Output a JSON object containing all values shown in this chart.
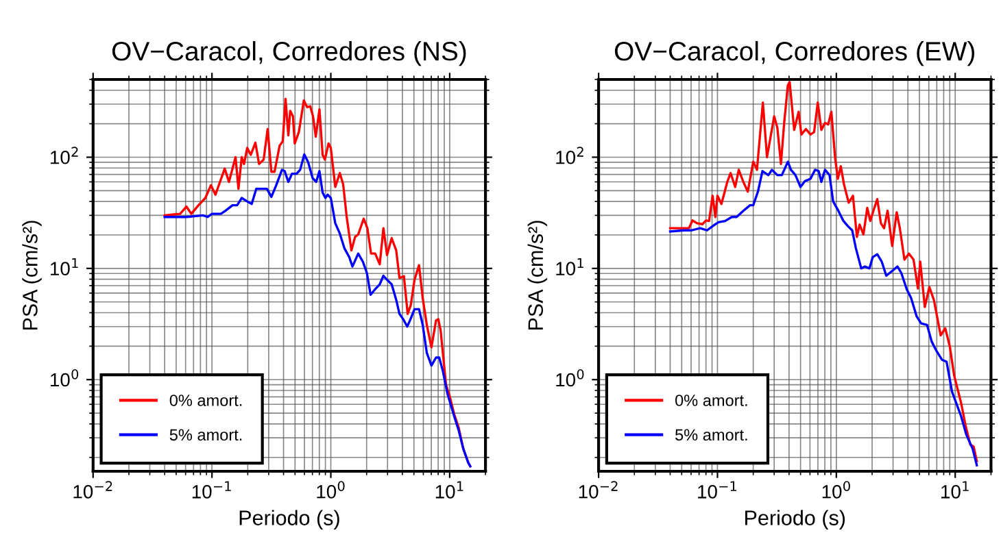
{
  "chart_data": [
    {
      "type": "line",
      "title": "OV−Caracol, Corredores (NS)",
      "xlabel": "Periodo (s)",
      "ylabel": "PSA (cm/s²)",
      "log": "xy",
      "grid": true,
      "legend": "bottom left",
      "xlim": [
        0.01,
        20
      ],
      "ylim": [
        0.15,
        500
      ],
      "xticks": [
        {
          "value": 0.01,
          "label": "10$^{−2}$"
        },
        {
          "value": 0.1,
          "label": "10$^{−1}$"
        },
        {
          "value": 1,
          "label": "10$^{0}$"
        },
        {
          "value": 10,
          "label": "10$^{1}$"
        }
      ],
      "yticks": [
        {
          "value": 1,
          "label": "10$^{0}$"
        },
        {
          "value": 10,
          "label": "10$^{1}$"
        },
        {
          "value": 100,
          "label": "10$^{2}$"
        }
      ],
      "series": [
        {
          "name": "0% amort.",
          "color": "#ff0000",
          "x": [
            0.04,
            0.054,
            0.061,
            0.067,
            0.077,
            0.088,
            0.098,
            0.107,
            0.128,
            0.139,
            0.158,
            0.167,
            0.178,
            0.186,
            0.198,
            0.212,
            0.232,
            0.249,
            0.272,
            0.294,
            0.316,
            0.336,
            0.371,
            0.394,
            0.416,
            0.439,
            0.455,
            0.48,
            0.497,
            0.538,
            0.593,
            0.631,
            0.671,
            0.708,
            0.747,
            0.802,
            0.853,
            0.891,
            0.957,
            1.0,
            1.09,
            1.19,
            1.27,
            1.36,
            1.49,
            1.6,
            1.7,
            1.89,
            2.03,
            2.18,
            2.36,
            2.58,
            2.77,
            2.97,
            3.25,
            3.55,
            3.78,
            4.12,
            4.43,
            4.71,
            5.06,
            5.52,
            5.93,
            6.42,
            7.02,
            7.67,
            8.01,
            8.38,
            9.31,
            10,
            10.9,
            11.9,
            13.0,
            14.3,
            14.9
          ],
          "values": [
            30,
            31,
            36,
            31,
            37,
            43,
            56,
            46,
            79,
            60,
            100,
            52,
            100,
            87,
            121,
            105,
            135,
            87,
            95,
            179,
            74,
            74,
            127,
            139,
            334,
            157,
            261,
            233,
            133,
            168,
            324,
            282,
            287,
            233,
            153,
            269,
            105,
            95,
            133,
            121,
            54,
            72,
            57,
            29,
            14.5,
            19.2,
            20.2,
            28,
            23,
            13.6,
            13.6,
            10.9,
            23,
            13.2,
            18.7,
            14.5,
            8.2,
            8.5,
            3.9,
            4.7,
            7.9,
            10.7,
            5.4,
            3.1,
            1.95,
            3.4,
            3.5,
            2.8,
            0.9,
            0.71,
            0.49,
            0.37,
            0.24,
            0.18,
            0.166
          ]
        },
        {
          "name": "5% amort.",
          "color": "#0000ff",
          "x": [
            0.04,
            0.061,
            0.084,
            0.092,
            0.1,
            0.119,
            0.13,
            0.149,
            0.163,
            0.178,
            0.198,
            0.216,
            0.236,
            0.265,
            0.29,
            0.316,
            0.345,
            0.388,
            0.409,
            0.439,
            0.471,
            0.515,
            0.552,
            0.598,
            0.643,
            0.702,
            0.753,
            0.802,
            0.853,
            0.9,
            0.94,
            1.0,
            1.09,
            1.19,
            1.3,
            1.43,
            1.52,
            1.7,
            1.86,
            2.01,
            2.16,
            2.36,
            2.58,
            2.77,
            2.97,
            3.25,
            3.55,
            3.78,
            4.06,
            4.39,
            4.63,
            5.06,
            5.52,
            5.93,
            6.42,
            7.02,
            7.67,
            8.16,
            8.75,
            9.57,
            10.9,
            11.9,
            13.0,
            14.3,
            14.9
          ],
          "values": [
            29,
            29,
            30,
            29,
            31,
            31,
            33,
            37,
            37,
            43,
            40,
            38,
            52,
            52,
            52,
            44,
            55,
            77,
            75,
            60,
            71,
            71,
            77,
            106,
            91,
            65,
            60,
            75,
            48,
            43,
            46,
            43,
            25.5,
            20.6,
            15.2,
            12.6,
            10.4,
            13.6,
            11.5,
            9.1,
            5.8,
            6.5,
            7.2,
            8.6,
            7.9,
            7.2,
            5.2,
            3.9,
            3.5,
            3.0,
            3.4,
            4.3,
            4.3,
            3.1,
            1.74,
            1.34,
            1.58,
            1.58,
            1.2,
            0.75,
            0.47,
            0.35,
            0.24,
            0.18,
            0.166
          ]
        }
      ]
    },
    {
      "type": "line",
      "title": "OV−Caracol, Corredores (EW)",
      "xlabel": "Periodo (s)",
      "ylabel": "PSA (cm/s²)",
      "log": "xy",
      "grid": true,
      "legend": "bottom left",
      "xlim": [
        0.01,
        20
      ],
      "ylim": [
        0.15,
        500
      ],
      "xticks": [
        {
          "value": 0.01,
          "label": "10$^{−2}$"
        },
        {
          "value": 0.1,
          "label": "10$^{−1}$"
        },
        {
          "value": 1,
          "label": "10$^{0}$"
        },
        {
          "value": 10,
          "label": "10$^{1}$"
        }
      ],
      "yticks": [
        {
          "value": 1,
          "label": "10$^{0}$"
        },
        {
          "value": 10,
          "label": "10$^{1}$"
        },
        {
          "value": 100,
          "label": "10$^{2}$"
        }
      ],
      "series": [
        {
          "name": "0% amort.",
          "color": "#ff0000",
          "x": [
            0.04,
            0.0504,
            0.0575,
            0.0617,
            0.0673,
            0.0748,
            0.08,
            0.085,
            0.091,
            0.096,
            0.1,
            0.108,
            0.121,
            0.129,
            0.141,
            0.151,
            0.165,
            0.18,
            0.2,
            0.215,
            0.241,
            0.261,
            0.28,
            0.3,
            0.319,
            0.342,
            0.364,
            0.391,
            0.405,
            0.442,
            0.482,
            0.508,
            0.555,
            0.606,
            0.65,
            0.698,
            0.748,
            0.803,
            0.854,
            0.908,
            0.975,
            1.03,
            1.09,
            1.16,
            1.27,
            1.38,
            1.49,
            1.57,
            1.69,
            1.82,
            1.93,
            2.07,
            2.21,
            2.37,
            2.52,
            2.7,
            2.95,
            3.22,
            3.42,
            3.74,
            4.08,
            4.46,
            4.86,
            5.08,
            5.55,
            6.06,
            6.62,
            7.55,
            8.24,
            9.0,
            9.8,
            11.2,
            12.2,
            13.4,
            14.3,
            15.2
          ],
          "values": [
            23,
            23,
            23,
            27,
            25.5,
            25,
            27,
            26.7,
            45,
            29,
            45,
            38,
            60,
            72,
            54,
            77,
            60,
            49,
            91,
            77,
            310,
            100,
            153,
            233,
            184,
            87,
            203,
            443,
            473,
            176,
            256,
            160,
            179,
            160,
            168,
            310,
            176,
            203,
            197,
            256,
            100,
            64,
            83,
            57,
            39,
            45,
            19.2,
            24.8,
            20.2,
            35,
            26.7,
            34,
            42,
            25.5,
            23,
            33,
            15.9,
            32,
            23,
            12,
            13.6,
            12,
            6.6,
            11.5,
            4.5,
            6.8,
            5.2,
            2.5,
            2.9,
            2.0,
            1.09,
            0.62,
            0.39,
            0.26,
            0.25,
            0.185
          ]
        },
        {
          "name": "5% amort.",
          "color": "#0000ff",
          "x": [
            0.04,
            0.0526,
            0.0601,
            0.0716,
            0.0817,
            0.0932,
            0.102,
            0.116,
            0.132,
            0.145,
            0.165,
            0.188,
            0.2,
            0.219,
            0.239,
            0.268,
            0.287,
            0.319,
            0.348,
            0.391,
            0.415,
            0.453,
            0.499,
            0.545,
            0.606,
            0.662,
            0.71,
            0.748,
            0.803,
            0.877,
            0.94,
            1.04,
            1.14,
            1.25,
            1.36,
            1.46,
            1.62,
            1.74,
            1.9,
            2.02,
            2.21,
            2.41,
            2.63,
            2.95,
            3.27,
            3.52,
            3.91,
            4.26,
            4.74,
            5.17,
            5.8,
            6.34,
            6.92,
            7.74,
            8.46,
            9.4,
            11.2,
            12.4,
            14.0,
            15.2
          ],
          "values": [
            21.5,
            22,
            22,
            23,
            22,
            24.4,
            26,
            26.7,
            29,
            29,
            33,
            37,
            37,
            49,
            75,
            69,
            77,
            69,
            69,
            91,
            77,
            69,
            54,
            61,
            64,
            77,
            75,
            60,
            77,
            69,
            40,
            33,
            27,
            24,
            22,
            15.2,
            10,
            10.4,
            10,
            12.6,
            13.4,
            11.5,
            8.6,
            9.5,
            10.4,
            9.1,
            6.5,
            5.4,
            3.7,
            3.2,
            3.1,
            2.2,
            1.83,
            1.51,
            1.45,
            0.78,
            0.47,
            0.32,
            0.24,
            0.17
          ]
        }
      ]
    }
  ]
}
